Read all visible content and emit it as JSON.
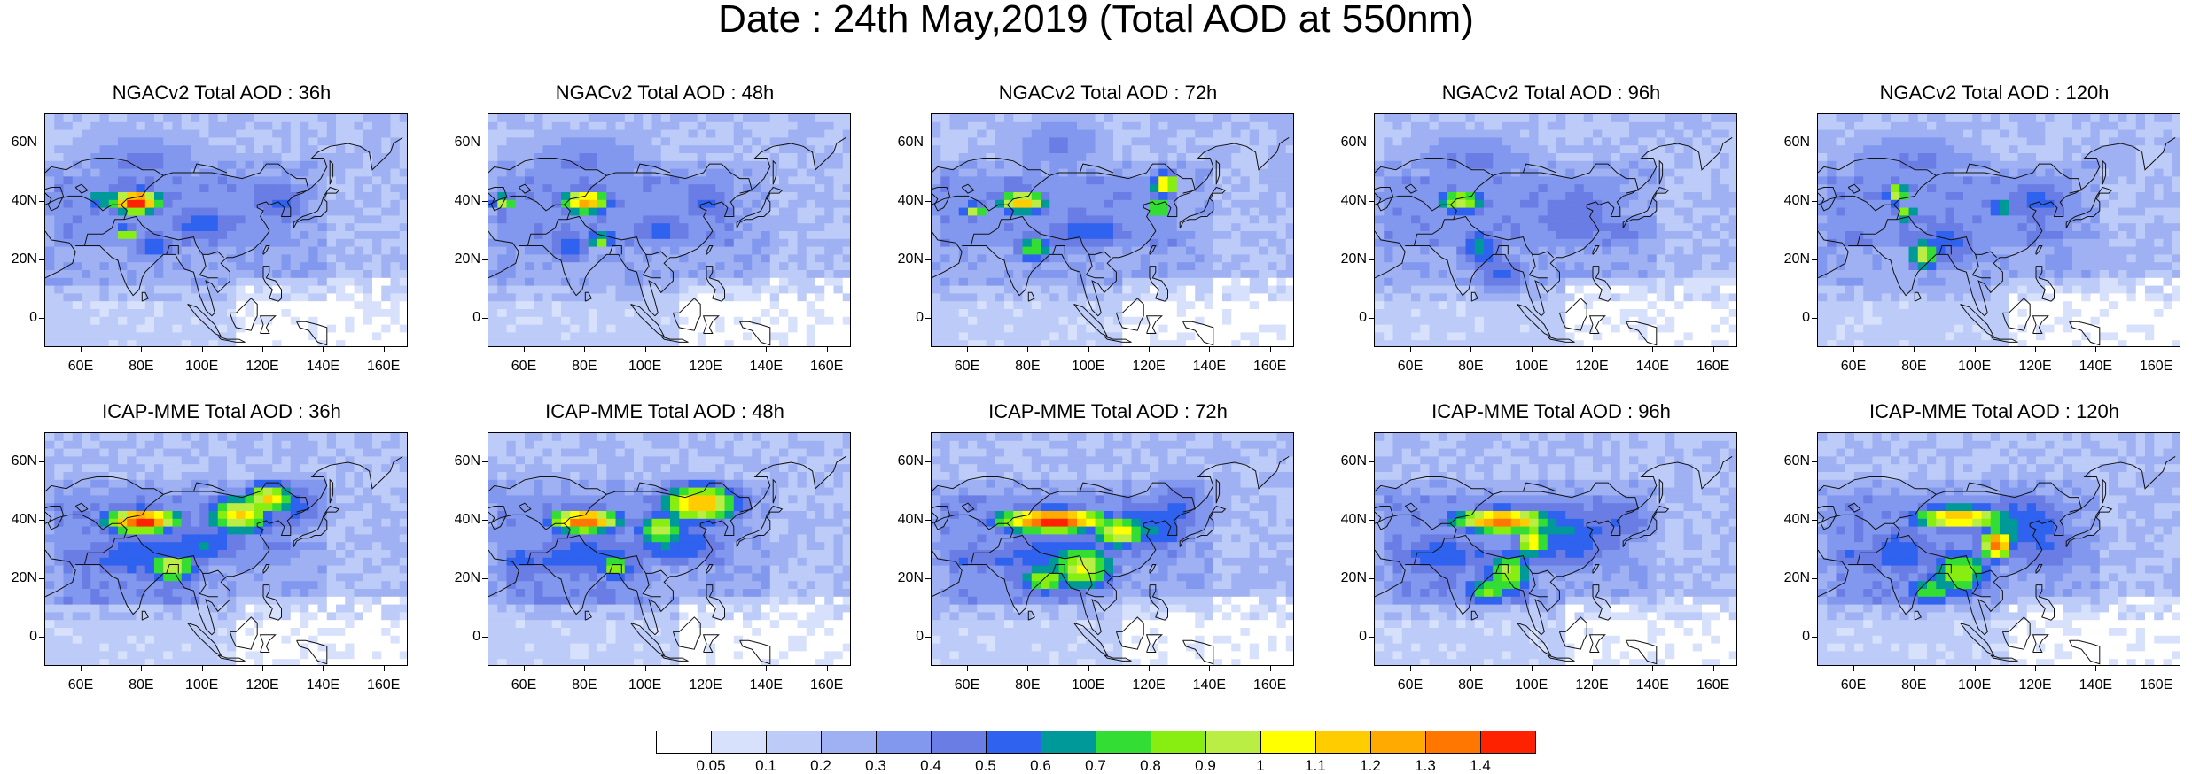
{
  "title": "Date : 24th May,2019 (Total AOD at 550nm)",
  "panels": [
    {
      "title": "NGACv2 Total AOD : 36h",
      "model": "NGACv2",
      "lead": "36h",
      "plumes": [
        [
          78,
          40,
          6,
          3,
          1.4
        ],
        [
          66,
          41,
          4,
          3,
          0.6
        ],
        [
          75,
          29,
          3,
          2,
          0.9
        ],
        [
          84,
          25,
          6,
          4,
          0.5
        ],
        [
          100,
          32,
          12,
          6,
          0.45
        ],
        [
          125,
          40,
          10,
          8,
          0.4
        ],
        [
          80,
          55,
          20,
          8,
          0.35
        ]
      ]
    },
    {
      "title": "NGACv2 Total AOD : 48h",
      "model": "NGACv2",
      "lead": "48h",
      "plumes": [
        [
          80,
          40,
          6,
          3,
          1.2
        ],
        [
          53,
          40,
          3,
          2,
          0.9
        ],
        [
          85,
          27,
          4,
          2,
          0.8
        ],
        [
          75,
          25,
          6,
          6,
          0.45
        ],
        [
          105,
          31,
          10,
          5,
          0.45
        ],
        [
          120,
          40,
          8,
          6,
          0.4
        ],
        [
          80,
          55,
          20,
          8,
          0.35
        ]
      ]
    },
    {
      "title": "NGACv2 Total AOD : 72h",
      "model": "NGACv2",
      "lead": "72h",
      "plumes": [
        [
          78,
          40,
          6,
          3,
          1.1
        ],
        [
          62,
          37,
          3,
          2,
          0.9
        ],
        [
          82,
          24,
          5,
          4,
          0.7
        ],
        [
          125,
          46,
          3,
          3,
          1.1
        ],
        [
          123,
          38,
          3,
          3,
          0.8
        ],
        [
          100,
          30,
          14,
          6,
          0.45
        ],
        [
          90,
          60,
          15,
          8,
          0.35
        ]
      ]
    },
    {
      "title": "NGACv2 Total AOD : 96h",
      "model": "NGACv2",
      "lead": "96h",
      "plumes": [
        [
          77,
          40,
          6,
          3,
          0.9
        ],
        [
          83,
          24,
          6,
          6,
          0.55
        ],
        [
          90,
          15,
          8,
          6,
          0.45
        ],
        [
          115,
          35,
          12,
          10,
          0.4
        ],
        [
          80,
          55,
          20,
          8,
          0.35
        ],
        [
          130,
          30,
          10,
          6,
          0.35
        ]
      ]
    },
    {
      "title": "NGACv2 Total AOD : 120h",
      "model": "NGACv2",
      "lead": "120h",
      "plumes": [
        [
          74,
          43,
          3,
          3,
          0.9
        ],
        [
          77,
          36,
          3,
          2,
          0.8
        ],
        [
          83,
          22,
          4,
          4,
          0.9
        ],
        [
          108,
          38,
          3,
          3,
          0.6
        ],
        [
          90,
          26,
          10,
          8,
          0.45
        ],
        [
          120,
          40,
          14,
          8,
          0.4
        ],
        [
          80,
          55,
          20,
          8,
          0.35
        ]
      ]
    },
    {
      "title": "ICAP-MME Total AOD : 36h",
      "model": "ICAP-MME",
      "lead": "36h",
      "plumes": [
        [
          80,
          40,
          9,
          3,
          1.4
        ],
        [
          112,
          42,
          8,
          5,
          1.0
        ],
        [
          122,
          48,
          6,
          4,
          1.0
        ],
        [
          90,
          24,
          6,
          4,
          0.9
        ],
        [
          100,
          32,
          14,
          6,
          0.5
        ],
        [
          80,
          28,
          20,
          8,
          0.45
        ],
        [
          130,
          45,
          10,
          8,
          0.45
        ]
      ]
    },
    {
      "title": "ICAP-MME Total AOD : 48h",
      "model": "ICAP-MME",
      "lead": "48h",
      "plumes": [
        [
          80,
          40,
          9,
          3,
          1.3
        ],
        [
          118,
          46,
          10,
          5,
          1.1
        ],
        [
          105,
          37,
          6,
          4,
          0.9
        ],
        [
          90,
          24,
          4,
          3,
          0.8
        ],
        [
          110,
          32,
          14,
          6,
          0.5
        ],
        [
          80,
          28,
          20,
          8,
          0.45
        ],
        [
          60,
          25,
          8,
          5,
          0.4
        ]
      ]
    },
    {
      "title": "ICAP-MME Total AOD : 72h",
      "model": "ICAP-MME",
      "lead": "72h",
      "plumes": [
        [
          88,
          40,
          14,
          3,
          1.4
        ],
        [
          110,
          36,
          6,
          4,
          1.0
        ],
        [
          98,
          24,
          8,
          6,
          0.9
        ],
        [
          85,
          20,
          6,
          4,
          0.8
        ],
        [
          120,
          38,
          14,
          8,
          0.5
        ],
        [
          90,
          28,
          20,
          10,
          0.45
        ],
        [
          130,
          45,
          10,
          10,
          0.4
        ]
      ]
    },
    {
      "title": "ICAP-MME Total AOD : 96h",
      "model": "ICAP-MME",
      "lead": "96h",
      "plumes": [
        [
          90,
          40,
          12,
          3,
          1.3
        ],
        [
          100,
          33,
          4,
          4,
          1.0
        ],
        [
          92,
          22,
          6,
          6,
          0.8
        ],
        [
          85,
          16,
          6,
          4,
          0.7
        ],
        [
          110,
          35,
          16,
          10,
          0.5
        ],
        [
          70,
          28,
          12,
          8,
          0.45
        ],
        [
          130,
          40,
          10,
          8,
          0.4
        ]
      ]
    },
    {
      "title": "ICAP-MME Total AOD : 120h",
      "model": "ICAP-MME",
      "lead": "120h",
      "plumes": [
        [
          95,
          41,
          12,
          3,
          1.1
        ],
        [
          107,
          32,
          4,
          4,
          1.3
        ],
        [
          95,
          22,
          8,
          6,
          0.8
        ],
        [
          85,
          16,
          6,
          4,
          0.7
        ],
        [
          115,
          38,
          14,
          10,
          0.5
        ],
        [
          75,
          30,
          12,
          8,
          0.45
        ],
        [
          125,
          30,
          12,
          8,
          0.4
        ]
      ]
    }
  ],
  "axes": {
    "lat_labels": [
      "60N",
      "40N",
      "20N",
      "0"
    ],
    "lat_values": [
      60,
      40,
      20,
      0
    ],
    "lon_labels": [
      "60E",
      "80E",
      "100E",
      "120E",
      "140E",
      "160E"
    ],
    "lon_values": [
      60,
      80,
      100,
      120,
      140,
      160
    ],
    "lon_range": [
      48,
      168
    ],
    "lat_range": [
      -10,
      70
    ]
  },
  "colorbar": {
    "colors": [
      "#ffffff",
      "#d8e1fc",
      "#bccbf7",
      "#9fb1f2",
      "#8198ee",
      "#6a7de4",
      "#2f62ee",
      "#009999",
      "#33dd33",
      "#88ee11",
      "#bbee44",
      "#ffff00",
      "#ffcc00",
      "#ffaa00",
      "#ff7700",
      "#ff2200"
    ],
    "labels": [
      "0.05",
      "0.1",
      "0.2",
      "0.3",
      "0.4",
      "0.5",
      "0.6",
      "0.7",
      "0.8",
      "0.9",
      "1",
      "1.1",
      "1.2",
      "1.3",
      "1.4"
    ],
    "levels": [
      0.05,
      0.1,
      0.2,
      0.3,
      0.4,
      0.5,
      0.6,
      0.7,
      0.8,
      0.9,
      1,
      1.1,
      1.2,
      1.3,
      1.4
    ]
  }
}
